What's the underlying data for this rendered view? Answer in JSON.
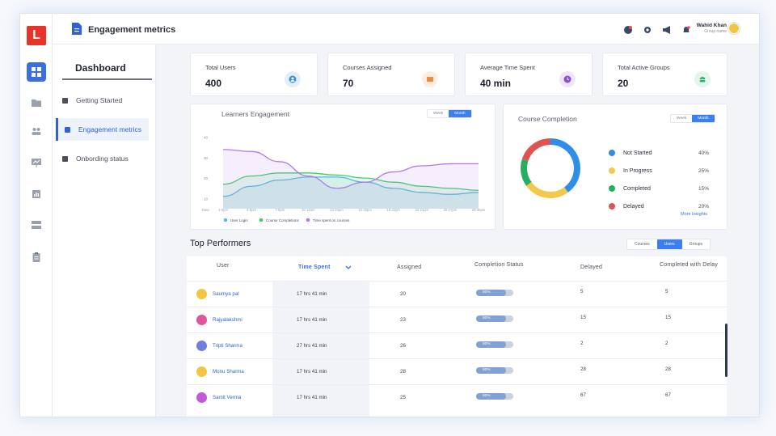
{
  "app": {
    "logo_letter": "L"
  },
  "header": {
    "title": "Engagement metrics",
    "user": {
      "name": "Wahid Khan",
      "role": "Group name"
    }
  },
  "sidebar": {
    "title": "Dashboard",
    "items": [
      {
        "label": "Getting Started"
      },
      {
        "label": "Engagement metrics"
      },
      {
        "label": "Onbording status"
      }
    ]
  },
  "stats": [
    {
      "label": "Total Users",
      "value": "400",
      "icon": "user-icon",
      "color": "#3b8fd8"
    },
    {
      "label": "Courses Assigned",
      "value": "70",
      "icon": "book-icon",
      "color": "#f08a3c"
    },
    {
      "label": "Average Time Spent",
      "value": "40 min",
      "icon": "clock-icon",
      "color": "#8a4fd8"
    },
    {
      "label": "Total Active Groups",
      "value": "20",
      "icon": "group-icon",
      "color": "#2fb36a"
    }
  ],
  "engagement": {
    "title": "Learners Engagement",
    "toggle": [
      "Week",
      "Month"
    ],
    "active_toggle": "Month"
  },
  "completion": {
    "title": "Course Completion",
    "toggle": [
      "Week",
      "Month"
    ],
    "active_toggle": "Month",
    "more_link": "More Insights"
  },
  "chart_data": [
    {
      "type": "line",
      "title": "Learners Engagement",
      "x_label": "Date",
      "x": [
        "1-5pm",
        "4-6pm",
        "7-9pm",
        "10-12am",
        "13-15pm",
        "16-18pm",
        "19-22pm",
        "22-24pm",
        "25-27pm",
        "28-30pm"
      ],
      "yticks": [
        10,
        20,
        30,
        40
      ],
      "ylim": [
        5,
        45
      ],
      "series": [
        {
          "name": "User Login",
          "color": "#5db8ea",
          "values": [
            11,
            16,
            19,
            20.5,
            20.5,
            18,
            15,
            13,
            12,
            13
          ]
        },
        {
          "name": "Course Completions",
          "color": "#3ecf6b",
          "values": [
            17,
            21,
            22.5,
            22.5,
            21.5,
            20,
            18,
            16,
            15,
            14
          ]
        },
        {
          "name": "Time spent on courses",
          "color": "#b07ae8",
          "values": [
            34,
            33,
            28,
            21,
            15,
            18,
            23,
            26,
            27,
            27
          ]
        }
      ]
    },
    {
      "type": "pie",
      "title": "Course Completion",
      "slices": [
        {
          "label": "Not Started",
          "value": 40,
          "display": "40%",
          "color": "#2f8ee8"
        },
        {
          "label": "In Progress",
          "value": 25,
          "display": "25%",
          "color": "#f2c94c"
        },
        {
          "label": "Completed",
          "value": 15,
          "display": "15%",
          "color": "#27ae60"
        },
        {
          "label": "Delayed",
          "value": 20,
          "display": "20%",
          "color": "#e05353"
        }
      ]
    }
  ],
  "performers": {
    "title": "Top Performers",
    "tabs": [
      "Courses",
      "Users",
      "Groups"
    ],
    "active_tab": "Users",
    "columns": [
      "User",
      "Time Spent",
      "Assigned",
      "Completion Status",
      "Delayed",
      "Completed with Delay"
    ],
    "rows": [
      {
        "name": "Saumya pal",
        "time": "17 hrs 41 min",
        "assigned": "20",
        "progress": 0.8,
        "progress_label": "80%",
        "delayed": "5",
        "completed_delay": "5",
        "avatar_color": "#f4c542"
      },
      {
        "name": "Rajyalakshmi",
        "time": "17 hrs 41 min",
        "assigned": "23",
        "progress": 0.8,
        "progress_label": "80%",
        "delayed": "15",
        "completed_delay": "15",
        "avatar_color": "#e2559b"
      },
      {
        "name": "Tripti Sharma",
        "time": "27 hrs 41 min",
        "assigned": "26",
        "progress": 0.8,
        "progress_label": "80%",
        "delayed": "2",
        "completed_delay": "2",
        "avatar_color": "#6f7fe0"
      },
      {
        "name": "Monu Sharma",
        "time": "17 hrs 41 min",
        "assigned": "28",
        "progress": 0.8,
        "progress_label": "80%",
        "delayed": "28",
        "completed_delay": "28",
        "avatar_color": "#f4c542"
      },
      {
        "name": "Samit Verma",
        "time": "17 hrs 41 min",
        "assigned": "25",
        "progress": 0.8,
        "progress_label": "80%",
        "delayed": "67",
        "completed_delay": "67",
        "avatar_color": "#c45ad8"
      }
    ]
  }
}
